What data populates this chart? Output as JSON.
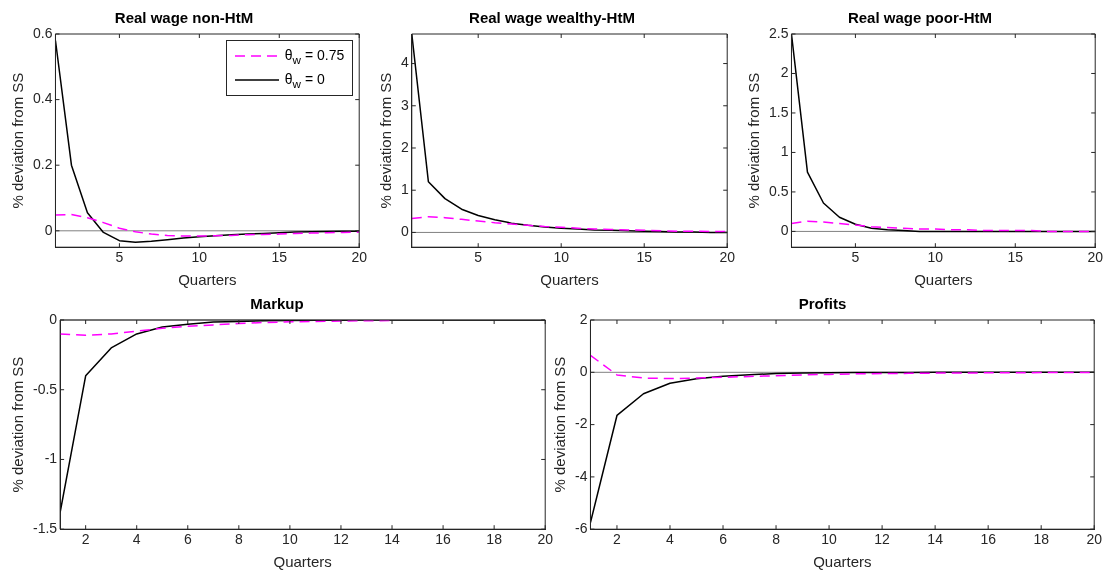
{
  "chart_data": [
    {
      "type": "line",
      "title": "Real wage non-HtM",
      "xlabel": "Quarters",
      "ylabel": "% deviation from SS",
      "x": [
        1,
        2,
        3,
        4,
        5,
        6,
        7,
        8,
        9,
        10,
        11,
        12,
        13,
        14,
        15,
        16,
        17,
        18,
        19,
        20
      ],
      "xlim": [
        1,
        20
      ],
      "xticks": [
        5,
        10,
        15,
        20
      ],
      "ylim": [
        -0.05,
        0.6
      ],
      "yticks": [
        0,
        0.2,
        0.4,
        0.6
      ],
      "grid": false,
      "legend": "top right",
      "marker": "none",
      "ref_lines": [
        {
          "axis": "y",
          "value": 0,
          "color": "#808080"
        }
      ],
      "series": [
        {
          "name": "θ$_{w}$ = 0.75",
          "color": "#ff00ff",
          "line_style": "dashed",
          "values": [
            0.048,
            0.05,
            0.04,
            0.025,
            0.008,
            -0.003,
            -0.01,
            -0.014,
            -0.016,
            -0.016,
            -0.015,
            -0.014,
            -0.012,
            -0.011,
            -0.01,
            -0.008,
            -0.007,
            -0.006,
            -0.005,
            -0.004
          ]
        },
        {
          "name": "θ$_{w}$ = 0",
          "color": "#000000",
          "line_style": "solid",
          "values": [
            0.58,
            0.2,
            0.055,
            -0.005,
            -0.03,
            -0.035,
            -0.032,
            -0.027,
            -0.022,
            -0.018,
            -0.015,
            -0.012,
            -0.01,
            -0.008,
            -0.006,
            -0.004,
            -0.003,
            -0.002,
            -0.001,
            -0.001
          ]
        }
      ]
    },
    {
      "type": "line",
      "title": "Real wage wealthy-HtM",
      "xlabel": "Quarters",
      "ylabel": "% deviation from SS",
      "x": [
        1,
        2,
        3,
        4,
        5,
        6,
        7,
        8,
        9,
        10,
        11,
        12,
        13,
        14,
        15,
        16,
        17,
        18,
        19,
        20
      ],
      "xlim": [
        1,
        20
      ],
      "xticks": [
        5,
        10,
        15,
        20
      ],
      "ylim": [
        -0.35,
        4.7
      ],
      "yticks": [
        0,
        1,
        2,
        3,
        4
      ],
      "grid": false,
      "marker": "none",
      "ref_lines": [
        {
          "axis": "y",
          "value": 0,
          "color": "#808080"
        }
      ],
      "series": [
        {
          "color": "#ff00ff",
          "line_style": "dashed",
          "values": [
            0.33,
            0.37,
            0.35,
            0.31,
            0.27,
            0.23,
            0.2,
            0.17,
            0.14,
            0.12,
            0.1,
            0.08,
            0.07,
            0.06,
            0.05,
            0.04,
            0.03,
            0.03,
            0.02,
            0.02
          ]
        },
        {
          "color": "#000000",
          "line_style": "solid",
          "values": [
            4.7,
            1.2,
            0.8,
            0.55,
            0.4,
            0.3,
            0.22,
            0.17,
            0.13,
            0.1,
            0.08,
            0.06,
            0.05,
            0.04,
            0.03,
            0.02,
            0.01,
            0.01,
            0,
            0
          ]
        }
      ]
    },
    {
      "type": "line",
      "title": "Real wage poor-HtM",
      "xlabel": "Quarters",
      "ylabel": "% deviation from SS",
      "x": [
        1,
        2,
        3,
        4,
        5,
        6,
        7,
        8,
        9,
        10,
        11,
        12,
        13,
        14,
        15,
        16,
        17,
        18,
        19,
        20
      ],
      "xlim": [
        1,
        20
      ],
      "xticks": [
        5,
        10,
        15,
        20
      ],
      "ylim": [
        -0.2,
        2.5
      ],
      "yticks": [
        0,
        0.5,
        1,
        1.5,
        2,
        2.5
      ],
      "grid": false,
      "marker": "none",
      "ref_lines": [
        {
          "axis": "y",
          "value": 0,
          "color": "#808080"
        }
      ],
      "series": [
        {
          "color": "#ff00ff",
          "line_style": "dashed",
          "values": [
            0.1,
            0.13,
            0.12,
            0.1,
            0.08,
            0.06,
            0.05,
            0.04,
            0.03,
            0.03,
            0.02,
            0.02,
            0.01,
            0.01,
            0.01,
            0.01,
            0,
            0,
            0,
            0
          ]
        },
        {
          "color": "#000000",
          "line_style": "solid",
          "values": [
            2.5,
            0.75,
            0.36,
            0.18,
            0.09,
            0.04,
            0.02,
            0.01,
            0,
            0,
            0,
            0,
            0,
            0,
            0,
            0,
            0,
            0,
            0,
            0
          ]
        }
      ]
    },
    {
      "type": "line",
      "title": "Markup",
      "xlabel": "Quarters",
      "ylabel": "% deviation from SS",
      "x": [
        1,
        2,
        3,
        4,
        5,
        6,
        7,
        8,
        9,
        10,
        11,
        12,
        13,
        14,
        15,
        16,
        17,
        18,
        19,
        20
      ],
      "xlim": [
        1,
        20
      ],
      "xticks": [
        2,
        4,
        6,
        8,
        10,
        12,
        14,
        16,
        18,
        20
      ],
      "ylim": [
        -1.5,
        0
      ],
      "yticks": [
        -1.5,
        -1,
        -0.5,
        0
      ],
      "grid": false,
      "marker": "none",
      "ref_lines": [
        {
          "axis": "y",
          "value": 0,
          "color": "#808080"
        }
      ],
      "series": [
        {
          "color": "#ff00ff",
          "line_style": "dashed",
          "values": [
            -0.1,
            -0.11,
            -0.1,
            -0.08,
            -0.06,
            -0.045,
            -0.035,
            -0.025,
            -0.018,
            -0.013,
            -0.01,
            -0.007,
            -0.005,
            -0.004,
            null,
            null,
            null,
            null,
            null,
            null
          ]
        },
        {
          "color": "#000000",
          "line_style": "solid",
          "values": [
            -1.38,
            -0.4,
            -0.2,
            -0.1,
            -0.05,
            -0.03,
            -0.015,
            -0.01,
            -0.005,
            -0.003,
            -0.002,
            -0.001,
            0,
            0,
            0,
            0,
            0,
            0,
            0,
            0
          ]
        }
      ]
    },
    {
      "type": "line",
      "title": "Profits",
      "xlabel": "Quarters",
      "ylabel": "% deviation from SS",
      "x": [
        1,
        2,
        3,
        4,
        5,
        6,
        7,
        8,
        9,
        10,
        11,
        12,
        13,
        14,
        15,
        16,
        17,
        18,
        19,
        20
      ],
      "xlim": [
        1,
        20
      ],
      "xticks": [
        2,
        4,
        6,
        8,
        10,
        12,
        14,
        16,
        18,
        20
      ],
      "ylim": [
        -6,
        2
      ],
      "yticks": [
        -6,
        -4,
        -2,
        0,
        2
      ],
      "grid": false,
      "marker": "none",
      "ref_lines": [
        {
          "axis": "y",
          "value": 0,
          "color": "#808080"
        }
      ],
      "series": [
        {
          "color": "#ff00ff",
          "line_style": "dashed",
          "values": [
            0.65,
            -0.1,
            -0.22,
            -0.24,
            -0.22,
            -0.19,
            -0.16,
            -0.13,
            -0.1,
            -0.08,
            -0.06,
            -0.05,
            -0.04,
            -0.03,
            -0.03,
            -0.02,
            -0.02,
            -0.01,
            -0.01,
            -0.01
          ]
        },
        {
          "color": "#000000",
          "line_style": "solid",
          "values": [
            -5.75,
            -1.65,
            -0.82,
            -0.42,
            -0.25,
            -0.15,
            -0.09,
            -0.05,
            -0.03,
            -0.02,
            -0.01,
            -0.01,
            -0.01,
            0,
            0,
            0,
            0,
            0,
            0,
            0
          ]
        }
      ]
    }
  ]
}
